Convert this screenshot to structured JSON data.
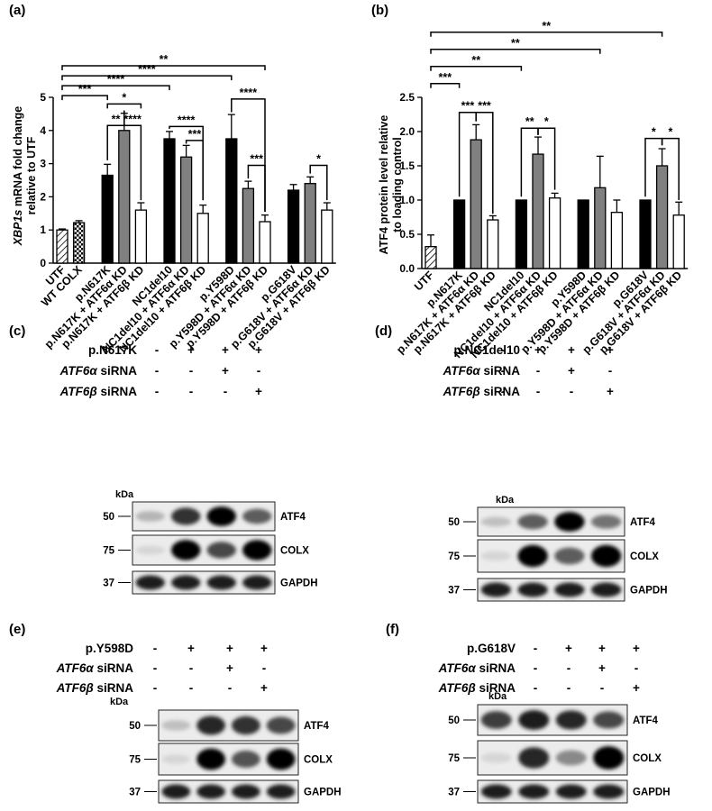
{
  "panel_labels": [
    "(a)",
    "(b)",
    "(c)",
    "(d)",
    "(e)",
    "(f)"
  ],
  "chart_data": [
    {
      "type": "bar",
      "panel": "(a)",
      "ylabel_italic": "XBP1s",
      "ylabel_rest": " mRNA fold change",
      "ylabel_line2": "relative to UTF",
      "ylim": [
        0,
        5
      ],
      "yticks": [
        "0",
        "1",
        "2",
        "3",
        "4",
        "5"
      ],
      "categories": [
        "UTF",
        "WT COLX",
        "p.N617K",
        "p.N617K + ATF6α KD",
        "p.N617K + ATF6β KD",
        "NC1del10",
        "NC1del10 + ATF6α KD",
        "NC1del10 + ATF6β KD",
        "p.Y598D",
        "p.Y598D + ATF6α KD",
        "p.Y598D + ATF6β KD",
        "p.G618V",
        "p.G618V + ATF6α KD",
        "p.G618V + ATF6β KD"
      ],
      "values": [
        1.0,
        1.22,
        2.65,
        4.0,
        1.6,
        3.75,
        3.2,
        1.5,
        3.75,
        2.25,
        1.25,
        2.2,
        2.4,
        1.6
      ],
      "errors": [
        0.03,
        0.06,
        0.33,
        0.52,
        0.22,
        0.22,
        0.35,
        0.25,
        0.73,
        0.22,
        0.2,
        0.17,
        0.2,
        0.22
      ],
      "fills": [
        "hatch",
        "check",
        "#000000",
        "#808080",
        "#ffffff",
        "#000000",
        "#808080",
        "#ffffff",
        "#000000",
        "#808080",
        "#ffffff",
        "#000000",
        "#808080",
        "#ffffff"
      ],
      "brackets": [
        {
          "from": 0,
          "to": 10,
          "label": "**",
          "level": 5.95
        },
        {
          "from": 0,
          "to": 8,
          "label": "****",
          "level": 5.65
        },
        {
          "from": 0,
          "to": 5,
          "label": "****",
          "level": 5.35
        },
        {
          "from": 0,
          "to": 2,
          "label": "***",
          "level": 5.05
        },
        {
          "from": 2,
          "to": 4,
          "label": "*",
          "level": 4.8
        },
        {
          "from": 2,
          "to": 3,
          "label": "**",
          "level": 4.15,
          "dropFrom": 3.1,
          "dropTo": 4.6
        },
        {
          "from": 3,
          "to": 4,
          "label": "****",
          "level": 4.15,
          "dropFrom": 4.6,
          "dropTo": 1.9
        },
        {
          "from": 5,
          "to": 7,
          "label": "****",
          "level": 4.12,
          "dropFrom": 4.05,
          "dropTo": 1.9
        },
        {
          "from": 6,
          "to": 7,
          "label": "***",
          "level": 3.7,
          "dropFrom": 3.6,
          "dropTo": 1.9
        },
        {
          "from": 8,
          "to": 10,
          "label": "****",
          "level": 4.95,
          "dropFrom": 4.55,
          "dropTo": 1.55
        },
        {
          "from": 9,
          "to": 10,
          "label": "***",
          "level": 2.95,
          "dropFrom": 2.55,
          "dropTo": 1.55
        },
        {
          "from": 12,
          "to": 13,
          "label": "*",
          "level": 2.95,
          "dropFrom": 2.7,
          "dropTo": 1.9
        }
      ]
    },
    {
      "type": "bar",
      "panel": "(b)",
      "ylabel": "ATF4 protein level relative",
      "ylabel_line2": "to loading control",
      "ylim": [
        0,
        2.5
      ],
      "yticks": [
        "0.0",
        "0.5",
        "1.0",
        "1.5",
        "2.0",
        "2.5"
      ],
      "categories": [
        "UTF",
        "p.N617K",
        "p.N617K + ATF6α KD",
        "p.N617K + ATF6β KD",
        "NC1del10",
        "NC1del10 + ATF6α KD",
        "NC1del10 + ATF6β KD",
        "p.Y598D",
        "p.Y598D + ATF6α KD",
        "p.Y598D + ATF6β KD",
        "p.G618V",
        "p.G618V + ATF6α KD",
        "p.G618V + ATF6β KD"
      ],
      "values": [
        0.32,
        1.0,
        1.88,
        0.71,
        1.0,
        1.67,
        1.03,
        1.0,
        1.18,
        0.82,
        1.0,
        1.5,
        0.78
      ],
      "errors": [
        0.17,
        0,
        0.22,
        0.06,
        0,
        0.25,
        0.07,
        0,
        0.46,
        0.18,
        0,
        0.25,
        0.19
      ],
      "fills": [
        "hatch",
        "#000000",
        "#808080",
        "#ffffff",
        "#000000",
        "#808080",
        "#ffffff",
        "#000000",
        "#808080",
        "#ffffff",
        "#000000",
        "#808080",
        "#ffffff"
      ],
      "brackets": [
        {
          "from": 0,
          "to": 11,
          "label": "**",
          "level": 3.45
        },
        {
          "from": 0,
          "to": 8,
          "label": "**",
          "level": 3.2
        },
        {
          "from": 0,
          "to": 4,
          "label": "**",
          "level": 2.95
        },
        {
          "from": 0,
          "to": 1,
          "label": "***",
          "level": 2.7
        },
        {
          "from": 1,
          "to": 2,
          "label": "***",
          "level": 2.28,
          "dropFrom": 1.05,
          "dropTo": 2.15
        },
        {
          "from": 2,
          "to": 3,
          "label": "***",
          "level": 2.28,
          "dropFrom": 2.15,
          "dropTo": 0.8
        },
        {
          "from": 4,
          "to": 5,
          "label": "**",
          "level": 2.05,
          "dropFrom": 1.05,
          "dropTo": 1.95
        },
        {
          "from": 5,
          "to": 6,
          "label": "*",
          "level": 2.05,
          "dropFrom": 1.95,
          "dropTo": 1.15
        },
        {
          "from": 10,
          "to": 11,
          "label": "*",
          "level": 1.9,
          "dropFrom": 1.05,
          "dropTo": 1.8
        },
        {
          "from": 11,
          "to": 12,
          "label": "*",
          "level": 1.9,
          "dropFrom": 1.8,
          "dropTo": 1.0
        }
      ]
    }
  ],
  "blots": [
    {
      "panel": "(c)",
      "mutant": "p.N617K",
      "mutant_signs": [
        "-",
        "+",
        "+",
        "+"
      ],
      "alpha_italic": "ATF6α",
      "alpha_signs": [
        "-",
        "-",
        "+",
        "-"
      ],
      "beta_italic": "ATF6β",
      "beta_signs": [
        "-",
        "-",
        "-",
        "+"
      ],
      "sirna": " siRNA",
      "kda": "kDa",
      "lanes": [
        {
          "name": "ATF4",
          "marker": "50",
          "bands": [
            0.2,
            0.8,
            1.0,
            0.6
          ]
        },
        {
          "name": "COLX",
          "marker": "75",
          "bands": [
            0.05,
            1.0,
            0.7,
            1.0
          ]
        },
        {
          "name": "GAPDH",
          "marker": "37",
          "bands": [
            0.9,
            0.9,
            0.9,
            0.9
          ]
        }
      ]
    },
    {
      "panel": "(d)",
      "mutant": "p.NC1del10",
      "mutant_signs": [
        "-",
        "+",
        "+",
        "+"
      ],
      "alpha_italic": "ATF6α",
      "alpha_signs": [
        "-",
        "-",
        "+",
        "-"
      ],
      "beta_italic": "ATF6β",
      "beta_signs": [
        "-",
        "-",
        "-",
        "+"
      ],
      "sirna": " siRNA",
      "kda": "kDa",
      "lanes": [
        {
          "name": "ATF4",
          "marker": "50",
          "bands": [
            0.15,
            0.6,
            1.0,
            0.5
          ]
        },
        {
          "name": "COLX",
          "marker": "75",
          "bands": [
            0.05,
            1.0,
            0.6,
            1.0
          ]
        },
        {
          "name": "GAPDH",
          "marker": "37",
          "bands": [
            0.9,
            0.9,
            0.9,
            0.9
          ]
        }
      ]
    },
    {
      "panel": "(e)",
      "mutant": "p.Y598D",
      "mutant_signs": [
        "-",
        "+",
        "+",
        "+"
      ],
      "alpha_italic": "ATF6α",
      "alpha_signs": [
        "-",
        "-",
        "+",
        "-"
      ],
      "beta_italic": "ATF6β",
      "beta_signs": [
        "-",
        "-",
        "-",
        "+"
      ],
      "sirna": " siRNA",
      "kda": "kDa",
      "lanes": [
        {
          "name": "ATF4",
          "marker": "50",
          "bands": [
            0.15,
            0.85,
            0.8,
            0.7
          ]
        },
        {
          "name": "COLX",
          "marker": "75",
          "bands": [
            0.05,
            1.0,
            0.65,
            1.0
          ]
        },
        {
          "name": "GAPDH",
          "marker": "37",
          "bands": [
            0.9,
            0.9,
            0.9,
            0.9
          ]
        }
      ]
    },
    {
      "panel": "(f)",
      "mutant": "p.G618V",
      "mutant_signs": [
        "-",
        "+",
        "+",
        "+"
      ],
      "alpha_italic": "ATF6α",
      "alpha_signs": [
        "-",
        "-",
        "+",
        "-"
      ],
      "beta_italic": "ATF6β",
      "beta_signs": [
        "-",
        "-",
        "-",
        "+"
      ],
      "sirna": " siRNA",
      "kda": "kDa",
      "lanes": [
        {
          "name": "ATF4",
          "marker": "50",
          "bands": [
            0.75,
            0.9,
            0.85,
            0.7
          ]
        },
        {
          "name": "COLX",
          "marker": "75",
          "bands": [
            0.05,
            0.85,
            0.4,
            1.0
          ]
        },
        {
          "name": "GAPDH",
          "marker": "37",
          "bands": [
            0.9,
            0.9,
            0.9,
            0.9
          ]
        }
      ]
    }
  ]
}
